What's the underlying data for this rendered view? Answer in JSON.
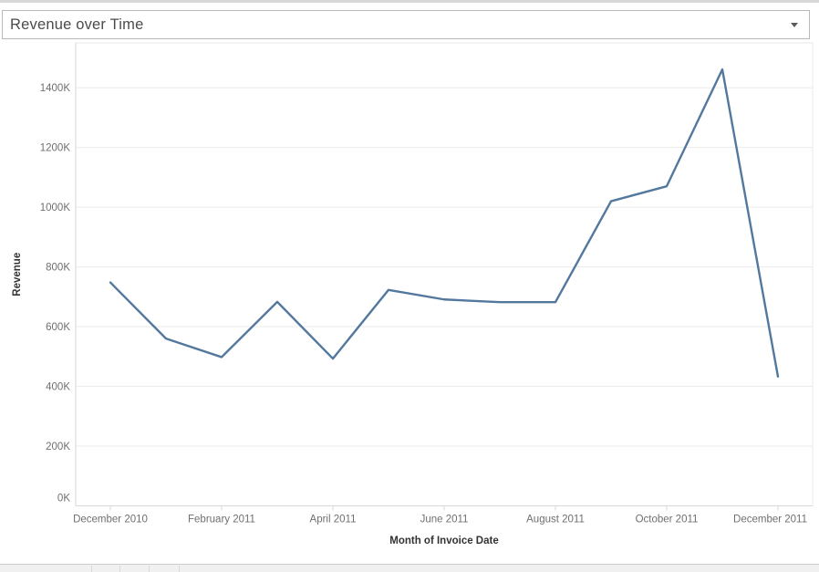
{
  "selector": {
    "value": "Revenue over Time"
  },
  "theme": {
    "top_strip": "#d8d8d8",
    "dropdown_border": "#b9b9b9",
    "dropdown_text": "#4b4b4b",
    "gridline": "#ebebeb",
    "axis_line": "#d7d7d7",
    "pane_border": "#e8e8e8",
    "tick_text": "#6f6f6f",
    "axis_title_text": "#333333",
    "bottom_bar_bg": "#f0f0f0",
    "bottom_bar_border": "#cdcdcd"
  },
  "chart_data": {
    "type": "line",
    "title": "Revenue over Time",
    "x_axis_title": "Month of Invoice Date",
    "y_axis_title": "Revenue",
    "unit": "K (thousands)",
    "categories": [
      "December 2010",
      "January 2011",
      "February 2011",
      "March 2011",
      "April 2011",
      "May 2011",
      "June 2011",
      "July 2011",
      "August 2011",
      "September 2011",
      "October 2011",
      "November 2011",
      "December 2011"
    ],
    "values": [
      748,
      560,
      498,
      683,
      493,
      723,
      691,
      682,
      682,
      1020,
      1070,
      1461,
      433
    ],
    "y_ticks": [
      0,
      200,
      400,
      600,
      800,
      1000,
      1200,
      1400
    ],
    "y_tick_suffix": "K",
    "x_tick_labels": [
      "December 2010",
      "February 2011",
      "April 2011",
      "June 2011",
      "August 2011",
      "October 2011",
      "December 2011"
    ],
    "x_tick_indices": [
      0,
      2,
      4,
      6,
      8,
      10,
      12
    ],
    "ylim": [
      0,
      1550
    ],
    "grid": true,
    "legend": "none",
    "line_color": "#53789e"
  }
}
